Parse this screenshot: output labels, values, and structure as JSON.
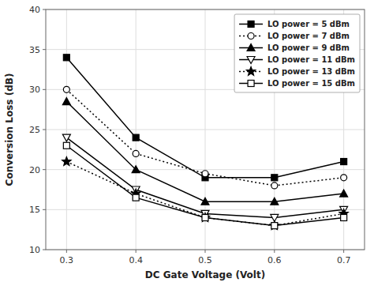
{
  "chart_data": {
    "type": "line",
    "x": [
      0.3,
      0.4,
      0.5,
      0.6,
      0.7
    ],
    "series": [
      {
        "name": "LO power = 5 dBm",
        "values": [
          34.0,
          24.0,
          19.0,
          19.0,
          21.0
        ],
        "marker": "square",
        "line_style": "solid",
        "color": "#000000"
      },
      {
        "name": "LO power = 7 dBm",
        "values": [
          30.0,
          22.0,
          19.5,
          18.0,
          19.0
        ],
        "marker": "circle-open",
        "line_style": "dotted",
        "color": "#000000"
      },
      {
        "name": "LO power = 9 dBm",
        "values": [
          28.5,
          20.0,
          16.0,
          16.0,
          17.0
        ],
        "marker": "triangle-up",
        "line_style": "solid",
        "color": "#000000"
      },
      {
        "name": "LO power = 11 dBm",
        "values": [
          24.0,
          17.5,
          14.5,
          14.0,
          15.0
        ],
        "marker": "triangle-down-open",
        "line_style": "solid",
        "color": "#000000"
      },
      {
        "name": "LO power = 13 dBm",
        "values": [
          21.0,
          17.0,
          14.0,
          13.0,
          14.5
        ],
        "marker": "star",
        "line_style": "dotted",
        "color": "#000000"
      },
      {
        "name": "LO power = 15 dBm",
        "values": [
          23.0,
          16.5,
          14.0,
          13.0,
          14.0
        ],
        "marker": "square-open",
        "line_style": "solid",
        "color": "#000000"
      }
    ],
    "xlabel": "DC Gate Voltage (Volt)",
    "ylabel": "Conversion Loss (dB)",
    "xlim": [
      0.27,
      0.73
    ],
    "ylim": [
      10,
      40
    ],
    "xticks": [
      0.3,
      0.4,
      0.5,
      0.6,
      0.7
    ],
    "yticks": [
      10,
      15,
      20,
      25,
      30,
      35,
      40
    ],
    "grid": true,
    "legend": "upper right"
  }
}
